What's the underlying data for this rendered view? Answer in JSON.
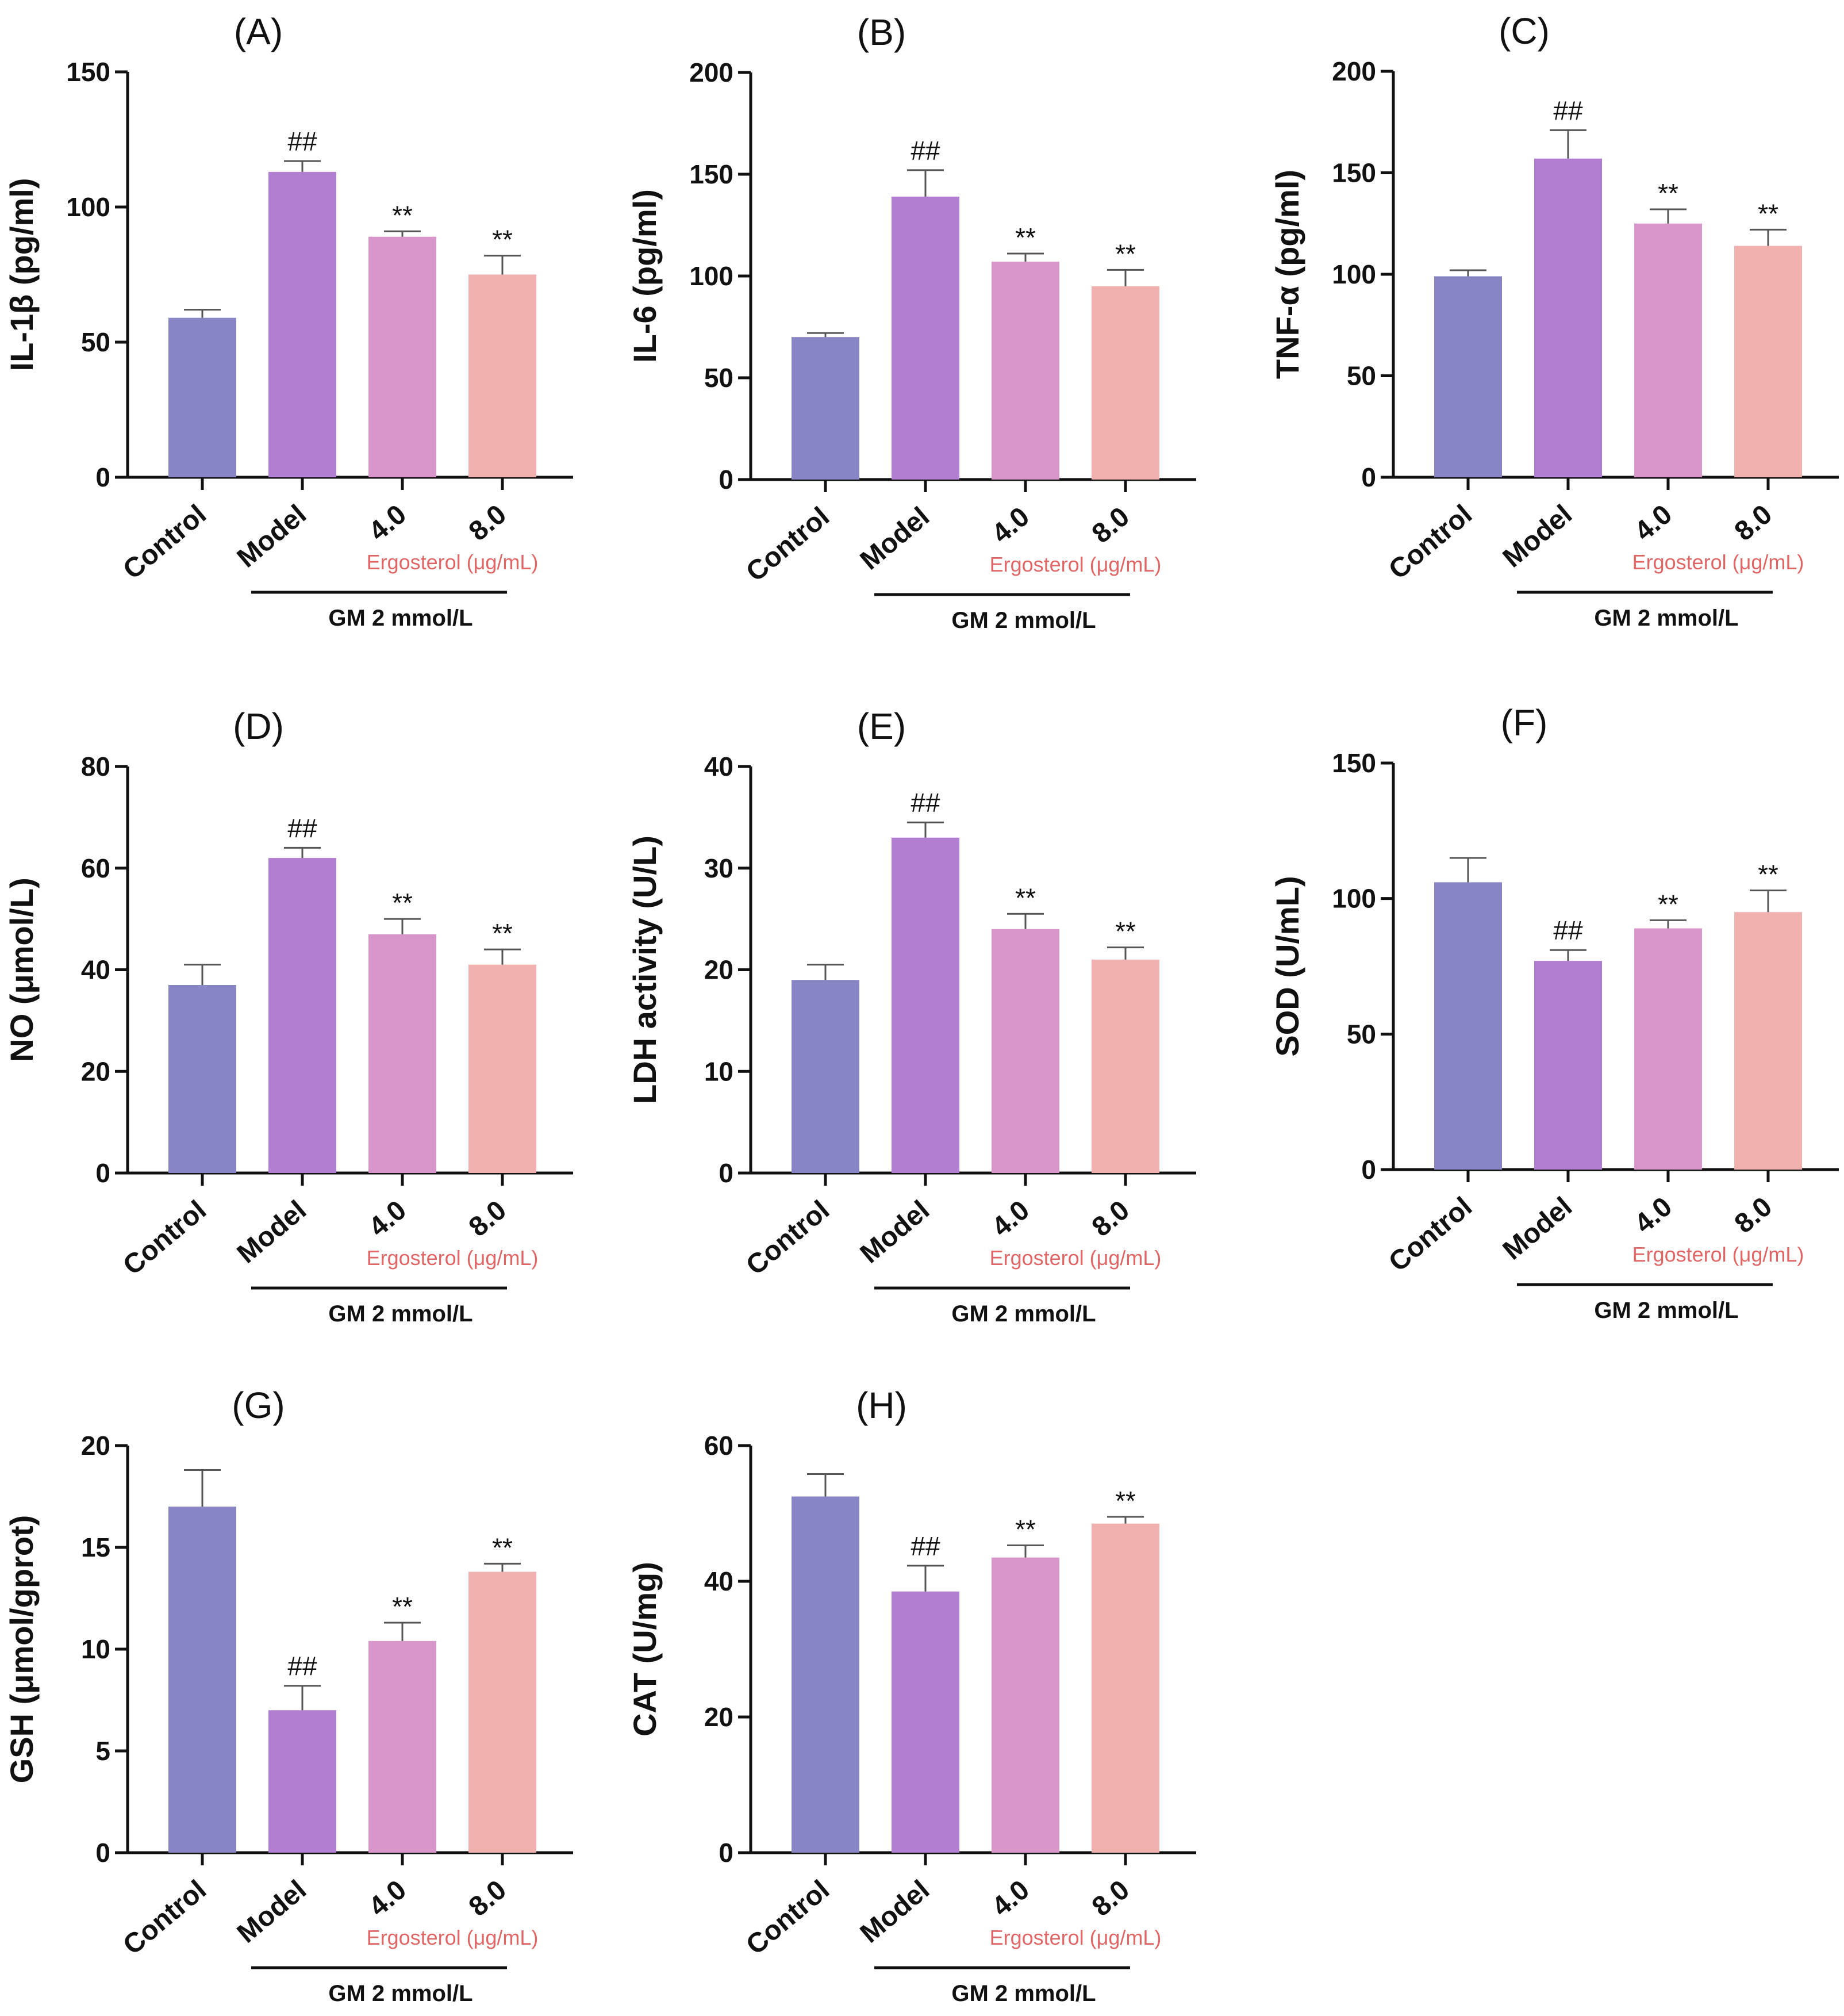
{
  "colors": {
    "bars": [
      "#8785c4",
      "#b27ed2",
      "#d895c9",
      "#f0b0ad"
    ],
    "ergosterol_text": "#e06666",
    "axis": "#111111"
  },
  "shared": {
    "ergosterol_label": "Ergosterol (μg/mL)",
    "gm_label": "GM 2 mmol/L"
  },
  "chart_data": [
    {
      "type": "bar",
      "id": "A",
      "title": "(A)",
      "ylabel": "IL-1β (pg/ml)",
      "ylim": [
        0,
        150
      ],
      "yticks": [
        0,
        50,
        100,
        150
      ],
      "categories": [
        "Control",
        "Model",
        "4.0",
        "8.0"
      ],
      "values": [
        59,
        113,
        89,
        75
      ],
      "errors": [
        3,
        4,
        2,
        7
      ],
      "annotations": [
        "",
        "##",
        "**",
        "**"
      ]
    },
    {
      "type": "bar",
      "id": "B",
      "title": "(B)",
      "ylabel": "IL-6 (pg/ml)",
      "ylim": [
        0,
        200
      ],
      "yticks": [
        0,
        50,
        100,
        150,
        200
      ],
      "categories": [
        "Control",
        "Model",
        "4.0",
        "8.0"
      ],
      "values": [
        70,
        139,
        107,
        95
      ],
      "errors": [
        2,
        13,
        4,
        8
      ],
      "annotations": [
        "",
        "##",
        "**",
        "**"
      ]
    },
    {
      "type": "bar",
      "id": "C",
      "title": "(C)",
      "ylabel": "TNF-α (pg/ml)",
      "ylim": [
        0,
        200
      ],
      "yticks": [
        0,
        50,
        100,
        150,
        200
      ],
      "categories": [
        "Control",
        "Model",
        "4.0",
        "8.0"
      ],
      "values": [
        99,
        157,
        125,
        114
      ],
      "errors": [
        3,
        14,
        7,
        8
      ],
      "annotations": [
        "",
        "##",
        "**",
        "**"
      ]
    },
    {
      "type": "bar",
      "id": "D",
      "title": "(D)",
      "ylabel": "NO (μmol/L)",
      "ylim": [
        0,
        80
      ],
      "yticks": [
        0,
        20,
        40,
        60,
        80
      ],
      "categories": [
        "Control",
        "Model",
        "4.0",
        "8.0"
      ],
      "values": [
        37,
        62,
        47,
        41
      ],
      "errors": [
        4,
        2,
        3,
        3
      ],
      "annotations": [
        "",
        "##",
        "**",
        "**"
      ]
    },
    {
      "type": "bar",
      "id": "E",
      "title": "(E)",
      "ylabel": "LDH activity (U/L)",
      "ylim": [
        0,
        40
      ],
      "yticks": [
        0,
        10,
        20,
        30,
        40
      ],
      "categories": [
        "Control",
        "Model",
        "4.0",
        "8.0"
      ],
      "values": [
        19,
        33,
        24,
        21
      ],
      "errors": [
        1.5,
        1.5,
        1.5,
        1.2
      ],
      "annotations": [
        "",
        "##",
        "**",
        "**"
      ]
    },
    {
      "type": "bar",
      "id": "F",
      "title": "(F)",
      "ylabel": "SOD (U/mL)",
      "ylim": [
        0,
        150
      ],
      "yticks": [
        0,
        50,
        100,
        150
      ],
      "categories": [
        "Control",
        "Model",
        "4.0",
        "8.0"
      ],
      "values": [
        106,
        77,
        89,
        95
      ],
      "errors": [
        9,
        4,
        3,
        8
      ],
      "annotations": [
        "",
        "##",
        "**",
        "**"
      ]
    },
    {
      "type": "bar",
      "id": "G",
      "title": "(G)",
      "ylabel": "GSH (μmol/gprot)",
      "ylim": [
        0,
        20
      ],
      "yticks": [
        0,
        5,
        10,
        15,
        20
      ],
      "categories": [
        "Control",
        "Model",
        "4.0",
        "8.0"
      ],
      "values": [
        17,
        7,
        10.4,
        13.8
      ],
      "errors": [
        1.8,
        1.2,
        0.9,
        0.4
      ],
      "annotations": [
        "",
        "##",
        "**",
        "**"
      ]
    },
    {
      "type": "bar",
      "id": "H",
      "title": "(H)",
      "ylabel": "CAT (U/mg)",
      "ylim": [
        0,
        60
      ],
      "yticks": [
        0,
        20,
        40,
        60
      ],
      "categories": [
        "Control",
        "Model",
        "4.0",
        "8.0"
      ],
      "values": [
        52.5,
        38.5,
        43.5,
        48.5
      ],
      "errors": [
        3.3,
        3.8,
        1.8,
        1
      ],
      "annotations": [
        "",
        "##",
        "**",
        "**"
      ]
    }
  ]
}
